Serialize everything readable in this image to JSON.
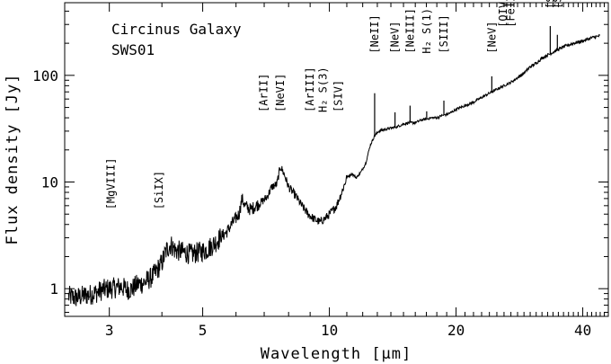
{
  "chart_data": {
    "type": "line",
    "title": "Circinus Galaxy",
    "subtitle": "SWS01",
    "xlabel": "Wavelength [μm]",
    "ylabel": "Flux density [Jy]",
    "xscale": "log",
    "yscale": "log",
    "xlim": [
      2.35,
      46
    ],
    "ylim": [
      0.55,
      480
    ],
    "xticks": [
      {
        "value": 3,
        "label": "3"
      },
      {
        "value": 5,
        "label": "5"
      },
      {
        "value": 10,
        "label": "10"
      },
      {
        "value": 20,
        "label": "20"
      },
      {
        "value": 40,
        "label": "40"
      }
    ],
    "yticks": [
      {
        "value": 1,
        "label": "1"
      },
      {
        "value": 10,
        "label": "10"
      },
      {
        "value": 100,
        "label": "100"
      }
    ],
    "grid": false,
    "series": [
      {
        "points": [
          [
            2.4,
            0.85
          ],
          [
            2.5,
            0.82
          ],
          [
            2.6,
            0.86
          ],
          [
            2.7,
            0.88
          ],
          [
            2.8,
            0.92
          ],
          [
            2.9,
            0.98
          ],
          [
            3.0,
            1.0
          ],
          [
            3.1,
            1.02
          ],
          [
            3.2,
            1.05
          ],
          [
            3.3,
            0.98
          ],
          [
            3.4,
            1.0
          ],
          [
            3.5,
            1.1
          ],
          [
            3.6,
            1.12
          ],
          [
            3.7,
            1.2
          ],
          [
            3.8,
            1.3
          ],
          [
            3.9,
            1.5
          ],
          [
            4.0,
            1.75
          ],
          [
            4.1,
            2.3
          ],
          [
            4.2,
            2.6
          ],
          [
            4.3,
            2.3
          ],
          [
            4.5,
            2.2
          ],
          [
            4.7,
            2.1
          ],
          [
            4.9,
            2.2
          ],
          [
            5.1,
            2.3
          ],
          [
            5.3,
            2.6
          ],
          [
            5.5,
            3.0
          ],
          [
            5.7,
            3.4
          ],
          [
            5.9,
            4.2
          ],
          [
            6.1,
            5.0
          ],
          [
            6.2,
            7.0
          ],
          [
            6.3,
            6.0
          ],
          [
            6.5,
            5.5
          ],
          [
            6.7,
            6.0
          ],
          [
            6.9,
            6.5
          ],
          [
            7.1,
            7.2
          ],
          [
            7.3,
            9.0
          ],
          [
            7.5,
            9.5
          ],
          [
            7.65,
            14.0
          ],
          [
            7.8,
            12.0
          ],
          [
            8.0,
            9.0
          ],
          [
            8.3,
            7.5
          ],
          [
            8.6,
            6.0
          ],
          [
            8.9,
            5.0
          ],
          [
            9.2,
            4.5
          ],
          [
            9.5,
            4.2
          ],
          [
            9.8,
            4.6
          ],
          [
            10.1,
            5.2
          ],
          [
            10.4,
            6.0
          ],
          [
            10.7,
            8.0
          ],
          [
            11.0,
            11.0
          ],
          [
            11.3,
            12.0
          ],
          [
            11.6,
            11.0
          ],
          [
            11.9,
            12.5
          ],
          [
            12.2,
            15.0
          ],
          [
            12.5,
            22.0
          ],
          [
            12.8,
            27.0
          ],
          [
            13.1,
            30.0
          ],
          [
            13.5,
            31.0
          ],
          [
            14.0,
            32.0
          ],
          [
            14.5,
            33.0
          ],
          [
            15.0,
            35.0
          ],
          [
            15.5,
            36.0
          ],
          [
            16.0,
            36.0
          ],
          [
            16.5,
            38.0
          ],
          [
            17.0,
            39.0
          ],
          [
            17.5,
            40.0
          ],
          [
            18.0,
            40.0
          ],
          [
            18.5,
            42.0
          ],
          [
            19.0,
            43.0
          ],
          [
            19.5,
            45.0
          ],
          [
            20.0,
            48.0
          ],
          [
            21.0,
            52.0
          ],
          [
            22.0,
            56.0
          ],
          [
            23.0,
            62.0
          ],
          [
            24.0,
            68.0
          ],
          [
            25.0,
            74.0
          ],
          [
            26.0,
            80.0
          ],
          [
            27.0,
            86.0
          ],
          [
            28.0,
            95.0
          ],
          [
            29.0,
            105.0
          ],
          [
            30.0,
            120.0
          ],
          [
            31.0,
            130.0
          ],
          [
            32.0,
            145.0
          ],
          [
            33.0,
            155.0
          ],
          [
            34.0,
            165.0
          ],
          [
            35.0,
            175.0
          ],
          [
            36.0,
            185.0
          ],
          [
            38.0,
            200.0
          ],
          [
            40.0,
            210.0
          ],
          [
            42.0,
            225.0
          ],
          [
            44.0,
            235.0
          ]
        ],
        "lines": [
          {
            "x": 12.81,
            "peak": 68
          },
          {
            "x": 14.32,
            "peak": 45
          },
          {
            "x": 15.55,
            "peak": 52
          },
          {
            "x": 17.03,
            "peak": 46
          },
          {
            "x": 18.71,
            "peak": 58
          },
          {
            "x": 24.32,
            "peak": 98
          },
          {
            "x": 33.48,
            "peak": 290
          },
          {
            "x": 34.81,
            "peak": 240
          }
        ]
      }
    ],
    "annotations": [
      {
        "x": 3.03,
        "y": 5.5,
        "label": "[MgVIII]"
      },
      {
        "x": 3.94,
        "y": 5.5,
        "label": "[SiIX]"
      },
      {
        "x": 6.98,
        "y": 45,
        "label": "[ArII]"
      },
      {
        "x": 7.65,
        "y": 45,
        "label": "[NeVI]"
      },
      {
        "x": 8.99,
        "y": 45,
        "label": "[ArIII]"
      },
      {
        "x": 9.66,
        "y": 45,
        "label": "H₂ S(3)"
      },
      {
        "x": 10.51,
        "y": 45,
        "label": "[SIV]"
      },
      {
        "x": 12.81,
        "y": 160,
        "label": "[NeII]"
      },
      {
        "x": 14.32,
        "y": 160,
        "label": "[NeV]"
      },
      {
        "x": 15.55,
        "y": 160,
        "label": "[NeIII]"
      },
      {
        "x": 17.03,
        "y": 160,
        "label": "H₂ S(1)"
      },
      {
        "x": 18.71,
        "y": 160,
        "label": "[SIII]"
      },
      {
        "x": 24.32,
        "y": 160,
        "label": "[NeV]"
      },
      {
        "x": 25.89,
        "y": 280,
        "label": "[OIV]"
      },
      {
        "x": 26.99,
        "y": 280,
        "label": "[FeII]"
      },
      {
        "x": 33.48,
        "y": 420,
        "label": "[SIII]"
      },
      {
        "x": 34.81,
        "y": 420,
        "label": "[SiII]"
      }
    ]
  }
}
